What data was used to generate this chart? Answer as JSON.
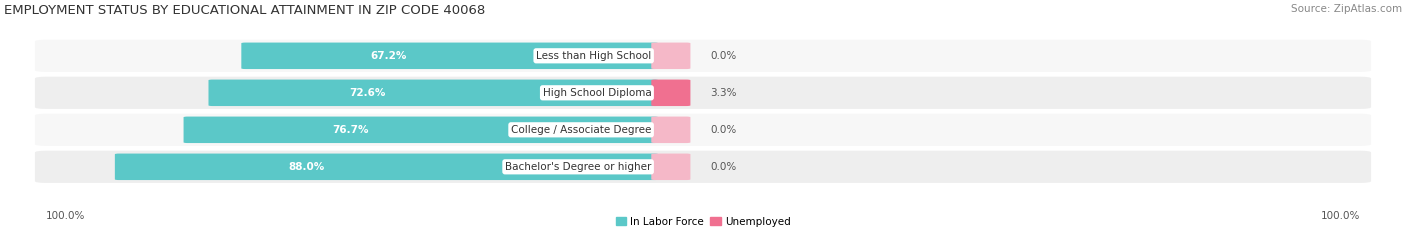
{
  "title": "EMPLOYMENT STATUS BY EDUCATIONAL ATTAINMENT IN ZIP CODE 40068",
  "source": "Source: ZipAtlas.com",
  "categories": [
    "Less than High School",
    "High School Diploma",
    "College / Associate Degree",
    "Bachelor's Degree or higher"
  ],
  "labor_force": [
    67.2,
    72.6,
    76.7,
    88.0
  ],
  "unemployed": [
    0.0,
    3.3,
    0.0,
    0.0
  ],
  "labor_force_color": "#5bc8c8",
  "unemployed_color": "#f07090",
  "unemployed_stub_color": "#f5b8c8",
  "label_color_lf": "#ffffff",
  "label_color_un": "#555555",
  "x_left_label": "100.0%",
  "x_right_label": "100.0%",
  "title_fontsize": 9.5,
  "source_fontsize": 7.5,
  "bar_label_fontsize": 7.5,
  "cat_label_fontsize": 7.5,
  "legend_fontsize": 7.5,
  "axis_label_fontsize": 7.5,
  "background_color": "#ffffff",
  "row_bg_even": "#f7f7f7",
  "row_bg_odd": "#eeeeee"
}
